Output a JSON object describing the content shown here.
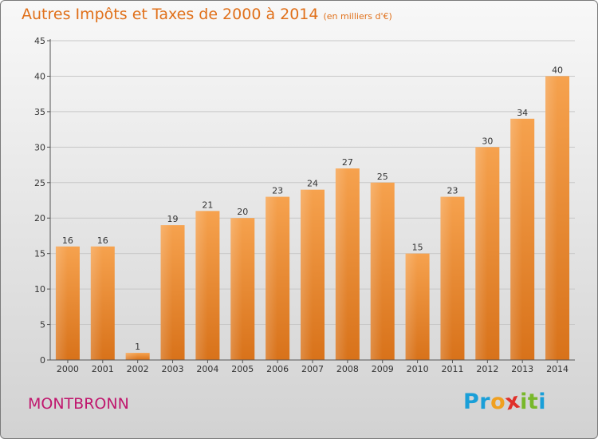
{
  "chart_data": {
    "type": "bar",
    "title": "Autres Impôts et Taxes de 2000 à 2014",
    "subtitle": "(en milliers d'€)",
    "categories": [
      "2000",
      "2001",
      "2002",
      "2003",
      "2004",
      "2005",
      "2006",
      "2007",
      "2008",
      "2009",
      "2010",
      "2011",
      "2012",
      "2013",
      "2014"
    ],
    "values": [
      16,
      16,
      1,
      19,
      21,
      20,
      23,
      24,
      27,
      25,
      15,
      23,
      30,
      34,
      40
    ],
    "ylim": [
      0,
      45
    ],
    "yticks": [
      0,
      5,
      10,
      15,
      20,
      25,
      30,
      35,
      40,
      45
    ],
    "grid": true,
    "bar_color": "#f08a2c"
  },
  "footer": {
    "town": "MONTBRONN",
    "logo": [
      "P",
      "r",
      "o",
      "x",
      "i",
      "t",
      "i"
    ]
  },
  "colors": {
    "title": "#e0701a",
    "town": "#c0186e",
    "logo": [
      "#1a9fd8",
      "#1a9fd8",
      "#f0a020",
      "#e0302a",
      "#78b82a",
      "#78b82a",
      "#1a9fd8"
    ]
  }
}
